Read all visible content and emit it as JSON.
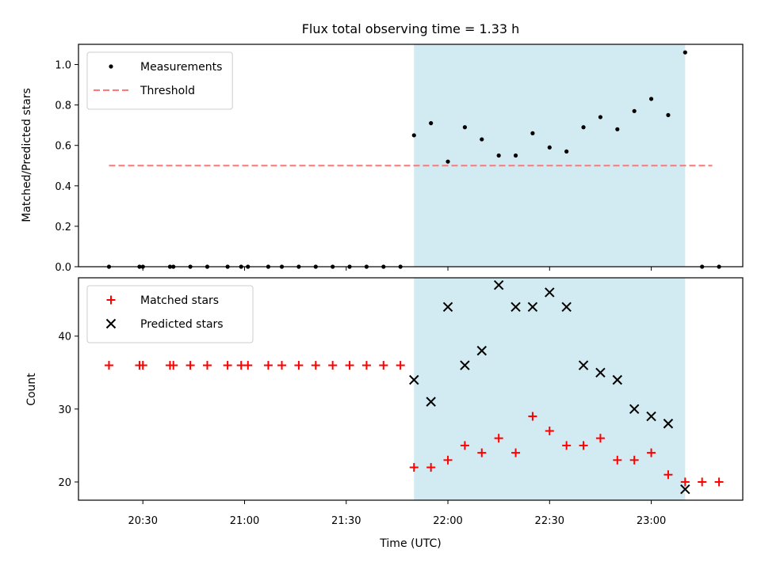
{
  "chart_data": [
    {
      "type": "scatter",
      "title": "Flux total observing time = 1.33 h",
      "xlabel": "",
      "ylabel": "Matched/Predicted stars",
      "ylim": [
        0.0,
        1.1
      ],
      "yticks": [
        "0.0",
        "0.2",
        "0.4",
        "0.6",
        "0.8",
        "1.0"
      ],
      "x_axis": "time (UTC), shared with lower panel",
      "xlim": [
        "20:11",
        "23:27"
      ],
      "shaded_interval": [
        "21:50",
        "23:10"
      ],
      "shade_color": "#add8e6",
      "legend": {
        "placement": "upper-left",
        "entries": [
          "Measurements",
          "Threshold"
        ]
      },
      "threshold": {
        "name": "Threshold",
        "value": 0.5,
        "x_range": [
          "20:20",
          "23:18"
        ],
        "style": "dashed",
        "color": "#ff7777"
      },
      "series": [
        {
          "name": "Measurements",
          "marker": "dot",
          "color": "#000000",
          "x": [
            "20:20",
            "20:29",
            "20:30",
            "20:38",
            "20:39",
            "20:44",
            "20:49",
            "20:55",
            "20:59",
            "21:01",
            "21:07",
            "21:11",
            "21:16",
            "21:21",
            "21:26",
            "21:31",
            "21:36",
            "21:41",
            "21:46",
            "21:50",
            "21:55",
            "22:00",
            "22:05",
            "22:10",
            "22:15",
            "22:20",
            "22:25",
            "22:30",
            "22:35",
            "22:40",
            "22:45",
            "22:50",
            "22:55",
            "23:00",
            "23:05",
            "23:10",
            "23:15",
            "23:20"
          ],
          "y": [
            0,
            0,
            0,
            0,
            0,
            0,
            0,
            0,
            0,
            0,
            0,
            0,
            0,
            0,
            0,
            0,
            0,
            0,
            0,
            0.65,
            0.71,
            0.52,
            0.69,
            0.63,
            0.55,
            0.55,
            0.66,
            0.59,
            0.57,
            0.69,
            0.74,
            0.68,
            0.77,
            0.83,
            0.75,
            1.06,
            0,
            0
          ]
        }
      ]
    },
    {
      "type": "scatter",
      "xlabel": "Time (UTC)",
      "ylabel": "Count",
      "ylim": [
        17.5,
        48
      ],
      "yticks": [
        "20",
        "30",
        "40"
      ],
      "xticks": [
        "20:30",
        "21:00",
        "21:30",
        "22:00",
        "22:30",
        "23:00"
      ],
      "xlim": [
        "20:11",
        "23:27"
      ],
      "shaded_interval": [
        "21:50",
        "23:10"
      ],
      "shade_color": "#add8e6",
      "legend": {
        "placement": "upper-left",
        "entries": [
          "Matched stars",
          "Predicted stars"
        ]
      },
      "series": [
        {
          "name": "Matched stars",
          "marker": "plus",
          "color": "#ff0000",
          "x": [
            "20:20",
            "20:29",
            "20:30",
            "20:38",
            "20:39",
            "20:44",
            "20:49",
            "20:55",
            "20:59",
            "21:01",
            "21:07",
            "21:11",
            "21:16",
            "21:21",
            "21:26",
            "21:31",
            "21:36",
            "21:41",
            "21:46",
            "21:50",
            "21:55",
            "22:00",
            "22:05",
            "22:10",
            "22:15",
            "22:20",
            "22:25",
            "22:30",
            "22:35",
            "22:40",
            "22:45",
            "22:50",
            "22:55",
            "23:00",
            "23:05",
            "23:10",
            "23:15",
            "23:20"
          ],
          "y": [
            36,
            36,
            36,
            36,
            36,
            36,
            36,
            36,
            36,
            36,
            36,
            36,
            36,
            36,
            36,
            36,
            36,
            36,
            36,
            22,
            22,
            23,
            25,
            24,
            26,
            24,
            29,
            27,
            25,
            25,
            26,
            23,
            23,
            24,
            21,
            20,
            20,
            20
          ]
        },
        {
          "name": "Predicted stars",
          "marker": "x",
          "color": "#000000",
          "x": [
            "21:50",
            "21:55",
            "22:00",
            "22:05",
            "22:10",
            "22:15",
            "22:20",
            "22:25",
            "22:30",
            "22:35",
            "22:40",
            "22:45",
            "22:50",
            "22:55",
            "23:00",
            "23:05",
            "23:10"
          ],
          "y": [
            34,
            31,
            44,
            36,
            38,
            47,
            44,
            44,
            46,
            44,
            36,
            35,
            34,
            30,
            29,
            28,
            19
          ]
        }
      ]
    }
  ]
}
